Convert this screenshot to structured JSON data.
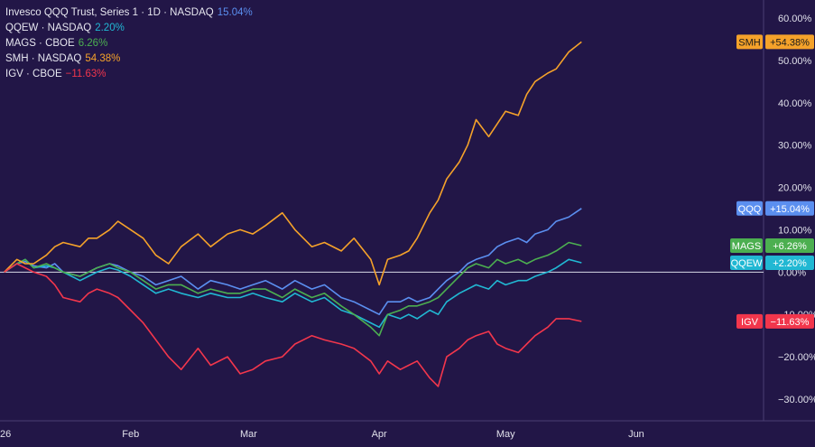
{
  "chart_data": {
    "type": "line",
    "y_unit": "%",
    "ylim": [
      -33,
      62
    ],
    "y_ticks": [
      "60.00%",
      "50.00%",
      "40.00%",
      "30.00%",
      "20.00%",
      "10.00%",
      "0.00%",
      "−10.00%",
      "−20.00%",
      "−30.00%"
    ],
    "y_tick_values": [
      60,
      50,
      40,
      30,
      20,
      10,
      0,
      -10,
      -20,
      -30
    ],
    "x_ticks": [
      "26",
      "Feb",
      "Mar",
      "Apr",
      "May",
      "Jun"
    ],
    "x_tick_dates": [
      "2026-01-01",
      "2026-02-01",
      "2026-03-01",
      "2026-04-01",
      "2026-05-01",
      "2026-06-01"
    ],
    "xlim": [
      "2026-01-01",
      "2026-06-31"
    ],
    "baseline": 0,
    "legend_placement": "top-left",
    "grid": false,
    "series": [
      {
        "key": "qqq",
        "legend_name": "Invesco QQQ Trust, Series 1 · 1D · NASDAQ",
        "legend_value": "15.04%",
        "badge_label": "QQQ",
        "badge_value": "+15.04%",
        "color": "#5b8ff0",
        "last": 15.04,
        "points": [
          [
            "2026-01-02",
            0
          ],
          [
            "2026-01-05",
            2
          ],
          [
            "2026-01-07",
            2.5
          ],
          [
            "2026-01-09",
            1.5
          ],
          [
            "2026-01-12",
            1
          ],
          [
            "2026-01-14",
            2
          ],
          [
            "2026-01-16",
            0
          ],
          [
            "2026-01-20",
            -1
          ],
          [
            "2026-01-22",
            0
          ],
          [
            "2026-01-24",
            1
          ],
          [
            "2026-01-27",
            2
          ],
          [
            "2026-01-29",
            1.5
          ],
          [
            "2026-02-01",
            0
          ],
          [
            "2026-02-04",
            -1
          ],
          [
            "2026-02-07",
            -3
          ],
          [
            "2026-02-10",
            -2
          ],
          [
            "2026-02-13",
            -1
          ],
          [
            "2026-02-17",
            -4
          ],
          [
            "2026-02-20",
            -2
          ],
          [
            "2026-02-24",
            -3
          ],
          [
            "2026-02-27",
            -4
          ],
          [
            "2026-03-02",
            -3
          ],
          [
            "2026-03-05",
            -2
          ],
          [
            "2026-03-09",
            -4
          ],
          [
            "2026-03-12",
            -2
          ],
          [
            "2026-03-16",
            -4
          ],
          [
            "2026-03-19",
            -3
          ],
          [
            "2026-03-23",
            -6
          ],
          [
            "2026-03-26",
            -7
          ],
          [
            "2026-03-30",
            -9
          ],
          [
            "2026-04-01",
            -10
          ],
          [
            "2026-04-03",
            -7
          ],
          [
            "2026-04-06",
            -7
          ],
          [
            "2026-04-08",
            -6
          ],
          [
            "2026-04-10",
            -7
          ],
          [
            "2026-04-13",
            -6
          ],
          [
            "2026-04-15",
            -4
          ],
          [
            "2026-04-17",
            -2
          ],
          [
            "2026-04-20",
            0
          ],
          [
            "2026-04-22",
            2
          ],
          [
            "2026-04-24",
            3
          ],
          [
            "2026-04-27",
            4
          ],
          [
            "2026-04-29",
            6
          ],
          [
            "2026-05-01",
            7
          ],
          [
            "2026-05-04",
            8
          ],
          [
            "2026-05-06",
            7
          ],
          [
            "2026-05-08",
            9
          ],
          [
            "2026-05-11",
            10
          ],
          [
            "2026-05-13",
            12
          ],
          [
            "2026-05-16",
            13
          ],
          [
            "2026-05-19",
            15.04
          ]
        ]
      },
      {
        "key": "qqew",
        "legend_name": "QQEW · NASDAQ",
        "legend_value": "2.20%",
        "badge_label": "QQEW",
        "badge_value": "+2.20%",
        "color": "#21b8d3",
        "last": 2.2,
        "points": [
          [
            "2026-01-02",
            0
          ],
          [
            "2026-01-05",
            2
          ],
          [
            "2026-01-07",
            3
          ],
          [
            "2026-01-09",
            1
          ],
          [
            "2026-01-12",
            1.5
          ],
          [
            "2026-01-14",
            1
          ],
          [
            "2026-01-16",
            0
          ],
          [
            "2026-01-20",
            -2
          ],
          [
            "2026-01-22",
            -1
          ],
          [
            "2026-01-24",
            0
          ],
          [
            "2026-01-27",
            1
          ],
          [
            "2026-01-29",
            0.5
          ],
          [
            "2026-02-01",
            -1
          ],
          [
            "2026-02-04",
            -3
          ],
          [
            "2026-02-07",
            -5
          ],
          [
            "2026-02-10",
            -4
          ],
          [
            "2026-02-13",
            -5
          ],
          [
            "2026-02-17",
            -6
          ],
          [
            "2026-02-20",
            -5
          ],
          [
            "2026-02-24",
            -6
          ],
          [
            "2026-02-27",
            -6
          ],
          [
            "2026-03-02",
            -5
          ],
          [
            "2026-03-05",
            -6
          ],
          [
            "2026-03-09",
            -7
          ],
          [
            "2026-03-12",
            -5
          ],
          [
            "2026-03-16",
            -7
          ],
          [
            "2026-03-19",
            -6
          ],
          [
            "2026-03-23",
            -9
          ],
          [
            "2026-03-26",
            -10
          ],
          [
            "2026-03-30",
            -12
          ],
          [
            "2026-04-01",
            -13
          ],
          [
            "2026-04-03",
            -10
          ],
          [
            "2026-04-06",
            -11
          ],
          [
            "2026-04-08",
            -10
          ],
          [
            "2026-04-10",
            -11
          ],
          [
            "2026-04-13",
            -9
          ],
          [
            "2026-04-15",
            -10
          ],
          [
            "2026-04-17",
            -7
          ],
          [
            "2026-04-20",
            -5
          ],
          [
            "2026-04-22",
            -4
          ],
          [
            "2026-04-24",
            -3
          ],
          [
            "2026-04-27",
            -4
          ],
          [
            "2026-04-29",
            -2
          ],
          [
            "2026-05-01",
            -3
          ],
          [
            "2026-05-04",
            -2
          ],
          [
            "2026-05-06",
            -2
          ],
          [
            "2026-05-08",
            -1
          ],
          [
            "2026-05-11",
            0
          ],
          [
            "2026-05-13",
            1
          ],
          [
            "2026-05-16",
            3
          ],
          [
            "2026-05-19",
            2.2
          ]
        ]
      },
      {
        "key": "mags",
        "legend_name": "MAGS · CBOE",
        "legend_value": "6.26%",
        "badge_label": "MAGS",
        "badge_value": "+6.26%",
        "color": "#4caf50",
        "last": 6.26,
        "points": [
          [
            "2026-01-02",
            0
          ],
          [
            "2026-01-05",
            2
          ],
          [
            "2026-01-07",
            3
          ],
          [
            "2026-01-09",
            1
          ],
          [
            "2026-01-12",
            2
          ],
          [
            "2026-01-14",
            1
          ],
          [
            "2026-01-16",
            0
          ],
          [
            "2026-01-20",
            -1
          ],
          [
            "2026-01-22",
            0
          ],
          [
            "2026-01-24",
            1
          ],
          [
            "2026-01-27",
            2
          ],
          [
            "2026-01-29",
            1
          ],
          [
            "2026-02-01",
            0
          ],
          [
            "2026-02-04",
            -2
          ],
          [
            "2026-02-07",
            -4
          ],
          [
            "2026-02-10",
            -3
          ],
          [
            "2026-02-13",
            -3
          ],
          [
            "2026-02-17",
            -5
          ],
          [
            "2026-02-20",
            -4
          ],
          [
            "2026-02-24",
            -5
          ],
          [
            "2026-02-27",
            -5
          ],
          [
            "2026-03-02",
            -4
          ],
          [
            "2026-03-05",
            -4
          ],
          [
            "2026-03-09",
            -6
          ],
          [
            "2026-03-12",
            -4
          ],
          [
            "2026-03-16",
            -6
          ],
          [
            "2026-03-19",
            -5
          ],
          [
            "2026-03-23",
            -8
          ],
          [
            "2026-03-26",
            -10
          ],
          [
            "2026-03-30",
            -13
          ],
          [
            "2026-04-01",
            -15
          ],
          [
            "2026-04-03",
            -10
          ],
          [
            "2026-04-06",
            -9
          ],
          [
            "2026-04-08",
            -8
          ],
          [
            "2026-04-10",
            -8
          ],
          [
            "2026-04-13",
            -7
          ],
          [
            "2026-04-15",
            -6
          ],
          [
            "2026-04-17",
            -4
          ],
          [
            "2026-04-20",
            -1
          ],
          [
            "2026-04-22",
            1
          ],
          [
            "2026-04-24",
            2
          ],
          [
            "2026-04-27",
            1
          ],
          [
            "2026-04-29",
            3
          ],
          [
            "2026-05-01",
            2
          ],
          [
            "2026-05-04",
            3
          ],
          [
            "2026-05-06",
            2
          ],
          [
            "2026-05-08",
            3
          ],
          [
            "2026-05-11",
            4
          ],
          [
            "2026-05-13",
            5
          ],
          [
            "2026-05-16",
            7
          ],
          [
            "2026-05-19",
            6.26
          ]
        ]
      },
      {
        "key": "smh",
        "legend_name": "SMH · NASDAQ",
        "legend_value": "54.38%",
        "badge_label": "SMH",
        "badge_value": "+54.38%",
        "color": "#f5a22a",
        "last": 54.38,
        "points": [
          [
            "2026-01-02",
            0
          ],
          [
            "2026-01-05",
            3
          ],
          [
            "2026-01-07",
            2
          ],
          [
            "2026-01-09",
            2
          ],
          [
            "2026-01-12",
            4
          ],
          [
            "2026-01-14",
            6
          ],
          [
            "2026-01-16",
            7
          ],
          [
            "2026-01-20",
            6
          ],
          [
            "2026-01-22",
            8
          ],
          [
            "2026-01-24",
            8
          ],
          [
            "2026-01-27",
            10
          ],
          [
            "2026-01-29",
            12
          ],
          [
            "2026-02-01",
            10
          ],
          [
            "2026-02-04",
            8
          ],
          [
            "2026-02-07",
            4
          ],
          [
            "2026-02-10",
            2
          ],
          [
            "2026-02-13",
            6
          ],
          [
            "2026-02-17",
            9
          ],
          [
            "2026-02-20",
            6
          ],
          [
            "2026-02-24",
            9
          ],
          [
            "2026-02-27",
            10
          ],
          [
            "2026-03-02",
            9
          ],
          [
            "2026-03-05",
            11
          ],
          [
            "2026-03-09",
            14
          ],
          [
            "2026-03-12",
            10
          ],
          [
            "2026-03-16",
            6
          ],
          [
            "2026-03-19",
            7
          ],
          [
            "2026-03-23",
            5
          ],
          [
            "2026-03-26",
            8
          ],
          [
            "2026-03-30",
            3
          ],
          [
            "2026-04-01",
            -3
          ],
          [
            "2026-04-03",
            3
          ],
          [
            "2026-04-06",
            4
          ],
          [
            "2026-04-08",
            5
          ],
          [
            "2026-04-10",
            8
          ],
          [
            "2026-04-13",
            14
          ],
          [
            "2026-04-15",
            17
          ],
          [
            "2026-04-17",
            22
          ],
          [
            "2026-04-20",
            26
          ],
          [
            "2026-04-22",
            30
          ],
          [
            "2026-04-24",
            36
          ],
          [
            "2026-04-27",
            32
          ],
          [
            "2026-04-29",
            35
          ],
          [
            "2026-05-01",
            38
          ],
          [
            "2026-05-04",
            37
          ],
          [
            "2026-05-06",
            42
          ],
          [
            "2026-05-08",
            45
          ],
          [
            "2026-05-11",
            47
          ],
          [
            "2026-05-13",
            48
          ],
          [
            "2026-05-16",
            52
          ],
          [
            "2026-05-19",
            54.38
          ]
        ]
      },
      {
        "key": "igv",
        "legend_name": "IGV · CBOE",
        "legend_value": "−11.63%",
        "badge_label": "IGV",
        "badge_value": "−11.63%",
        "color": "#f2364c",
        "last": -11.63,
        "points": [
          [
            "2026-01-02",
            0
          ],
          [
            "2026-01-05",
            2
          ],
          [
            "2026-01-07",
            1
          ],
          [
            "2026-01-09",
            0
          ],
          [
            "2026-01-12",
            -1
          ],
          [
            "2026-01-14",
            -3
          ],
          [
            "2026-01-16",
            -6
          ],
          [
            "2026-01-20",
            -7
          ],
          [
            "2026-01-22",
            -5
          ],
          [
            "2026-01-24",
            -4
          ],
          [
            "2026-01-27",
            -5
          ],
          [
            "2026-01-29",
            -6
          ],
          [
            "2026-02-01",
            -9
          ],
          [
            "2026-02-04",
            -12
          ],
          [
            "2026-02-07",
            -16
          ],
          [
            "2026-02-10",
            -20
          ],
          [
            "2026-02-13",
            -23
          ],
          [
            "2026-02-17",
            -18
          ],
          [
            "2026-02-20",
            -22
          ],
          [
            "2026-02-24",
            -20
          ],
          [
            "2026-02-27",
            -24
          ],
          [
            "2026-03-02",
            -23
          ],
          [
            "2026-03-05",
            -21
          ],
          [
            "2026-03-09",
            -20
          ],
          [
            "2026-03-12",
            -17
          ],
          [
            "2026-03-16",
            -15
          ],
          [
            "2026-03-19",
            -16
          ],
          [
            "2026-03-23",
            -17
          ],
          [
            "2026-03-26",
            -18
          ],
          [
            "2026-03-30",
            -21
          ],
          [
            "2026-04-01",
            -24
          ],
          [
            "2026-04-03",
            -21
          ],
          [
            "2026-04-06",
            -23
          ],
          [
            "2026-04-08",
            -22
          ],
          [
            "2026-04-10",
            -21
          ],
          [
            "2026-04-13",
            -25
          ],
          [
            "2026-04-15",
            -27
          ],
          [
            "2026-04-17",
            -20
          ],
          [
            "2026-04-20",
            -18
          ],
          [
            "2026-04-22",
            -16
          ],
          [
            "2026-04-24",
            -15
          ],
          [
            "2026-04-27",
            -14
          ],
          [
            "2026-04-29",
            -17
          ],
          [
            "2026-05-01",
            -18
          ],
          [
            "2026-05-04",
            -19
          ],
          [
            "2026-05-06",
            -17
          ],
          [
            "2026-05-08",
            -15
          ],
          [
            "2026-05-11",
            -13
          ],
          [
            "2026-05-13",
            -11
          ],
          [
            "2026-05-16",
            -11
          ],
          [
            "2026-05-19",
            -11.63
          ]
        ]
      }
    ]
  }
}
